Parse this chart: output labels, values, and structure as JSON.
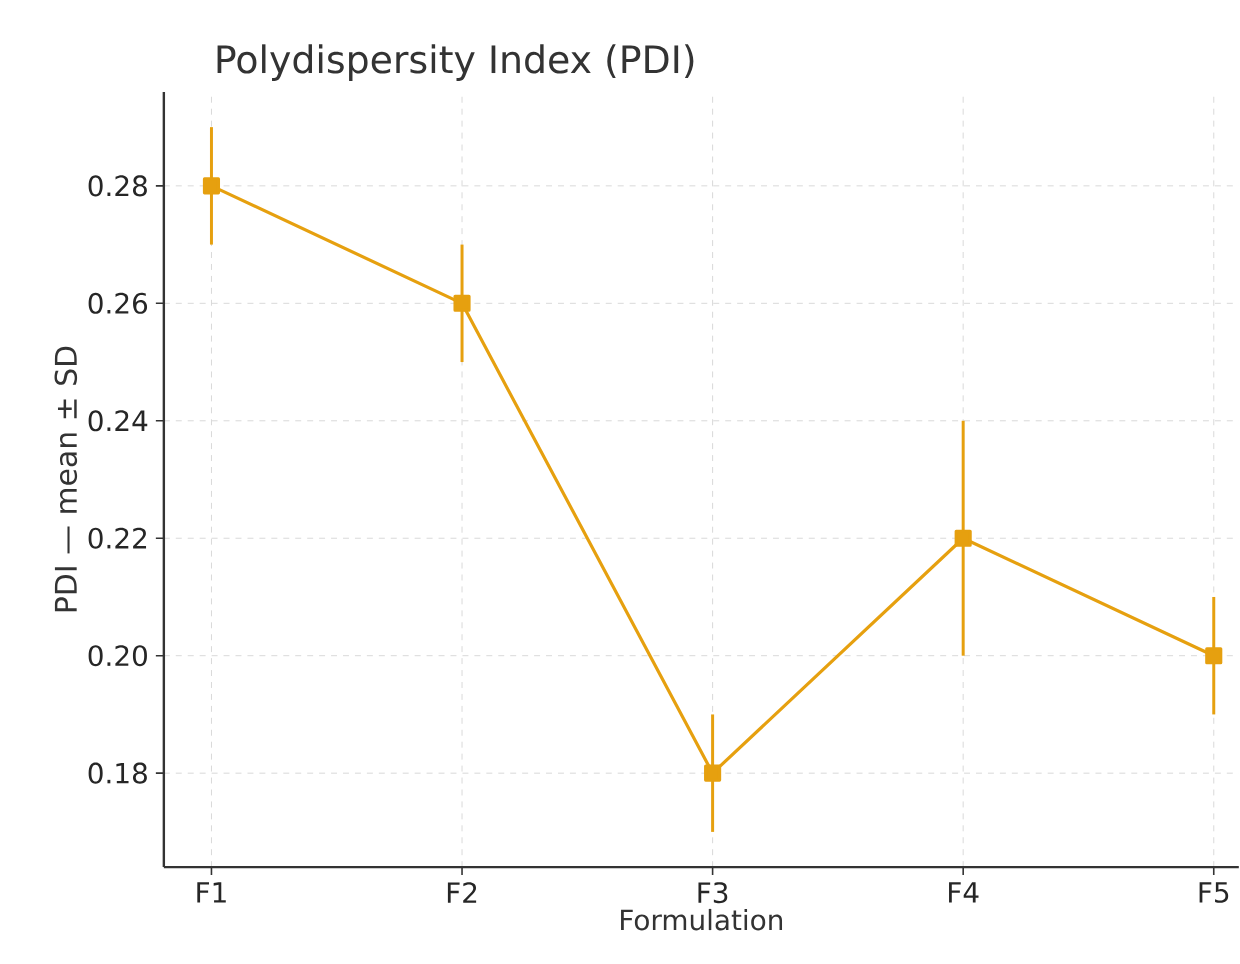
{
  "chart_data": {
    "type": "line",
    "title": "Polydispersity Index (PDI)",
    "xlabel": "Formulation",
    "ylabel": "PDI — mean ± SD",
    "categories": [
      "F1",
      "F2",
      "F3",
      "F4",
      "F5"
    ],
    "series": [
      {
        "color": "#e6a00f",
        "values": [
          0.28,
          0.26,
          0.18,
          0.22,
          0.2
        ],
        "errors": [
          0.01,
          0.01,
          0.01,
          0.02,
          0.01
        ]
      }
    ],
    "ylim": [
      0.164,
      0.296
    ],
    "yticks": [
      {
        "value": 0.18,
        "label": "0.18"
      },
      {
        "value": 0.2,
        "label": "0.20"
      },
      {
        "value": 0.22,
        "label": "0.22"
      },
      {
        "value": 0.24,
        "label": "0.24"
      },
      {
        "value": 0.26,
        "label": "0.26"
      },
      {
        "value": 0.28,
        "label": "0.28"
      }
    ],
    "grid": true,
    "marker": "square",
    "line_style": "solid"
  }
}
